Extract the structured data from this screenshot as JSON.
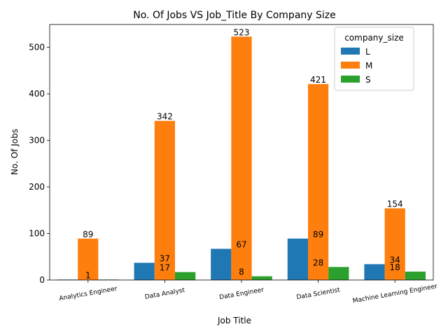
{
  "chart_data": {
    "type": "bar",
    "title": "No. Of Jobs VS Job_Title By Company Size",
    "xlabel": "Job Title",
    "ylabel": "No. Of Jobs",
    "categories": [
      "Analytics Engineer",
      "Data Analyst",
      "Data Engineer",
      "Data Scientist",
      "Machine Learning Engineer"
    ],
    "series": [
      {
        "name": "L",
        "color": "#1f77b4",
        "values": [
          1,
          37,
          67,
          89,
          34
        ]
      },
      {
        "name": "M",
        "color": "#ff7f0e",
        "values": [
          89,
          342,
          523,
          421,
          154
        ]
      },
      {
        "name": "S",
        "color": "#2ca02c",
        "values": [
          1,
          17,
          8,
          28,
          18
        ]
      }
    ],
    "data_labels": [
      [
        "1",
        "37",
        "67",
        "89",
        "34"
      ],
      [
        "89",
        "342",
        "523",
        "421",
        "154"
      ],
      [
        "",
        "17",
        "8",
        "28",
        "18"
      ]
    ],
    "ylim": [
      0,
      549
    ],
    "yticks": [
      0,
      100,
      200,
      300,
      400,
      500
    ],
    "legend": {
      "title": "company_size",
      "placement": "top-right"
    },
    "grid": false
  }
}
